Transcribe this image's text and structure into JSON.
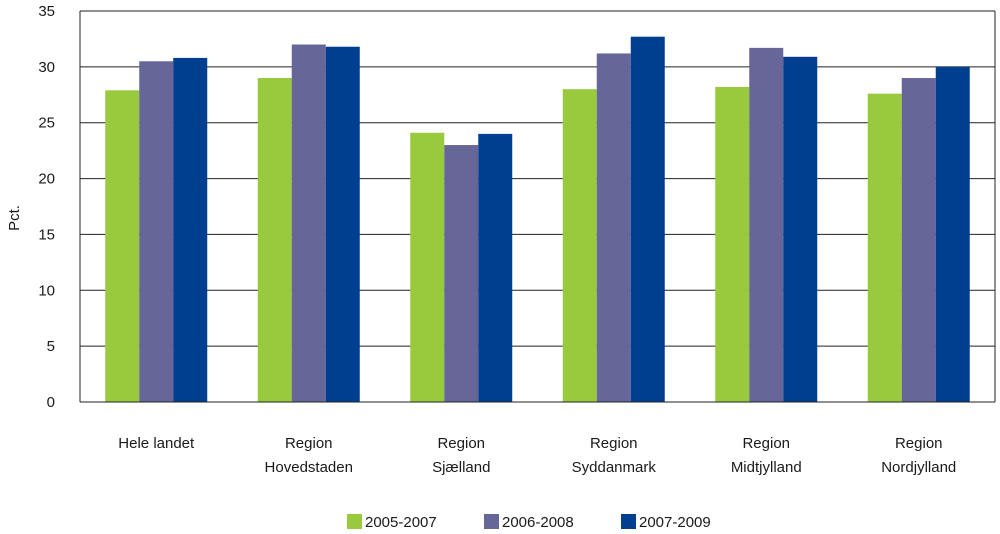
{
  "chart_data": {
    "type": "bar",
    "ylabel": "Pct.",
    "ylim": [
      0,
      35
    ],
    "yticks": [
      0,
      5,
      10,
      15,
      20,
      25,
      30,
      35
    ],
    "grid": true,
    "legend_position": "bottom",
    "categories": [
      [
        "Hele landet"
      ],
      [
        "Region",
        "Hovedstaden"
      ],
      [
        "Region",
        "Sjælland"
      ],
      [
        "Region",
        "Syddanmark"
      ],
      [
        "Region",
        "Midtjylland"
      ],
      [
        "Region",
        "Nordjylland"
      ]
    ],
    "series": [
      {
        "name": "2005-2007",
        "color": "#99c93c",
        "values": [
          27.9,
          29.0,
          24.1,
          28.0,
          28.2,
          27.6
        ]
      },
      {
        "name": "2006-2008",
        "color": "#666699",
        "values": [
          30.5,
          32.0,
          23.0,
          31.2,
          31.7,
          29.0
        ]
      },
      {
        "name": "2007-2009",
        "color": "#003f8f",
        "values": [
          30.8,
          31.8,
          24.0,
          32.7,
          30.9,
          30.0
        ]
      }
    ]
  }
}
